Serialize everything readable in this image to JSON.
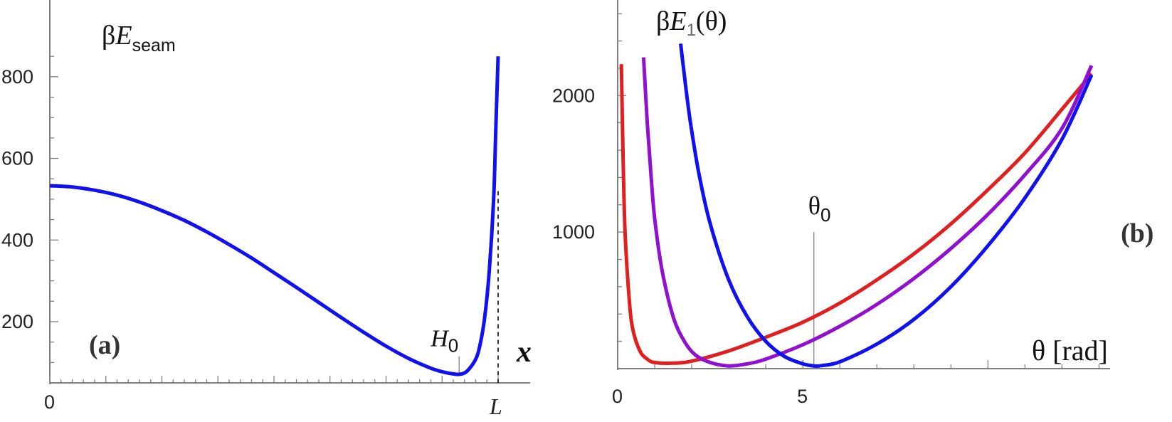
{
  "chart_data": [
    {
      "type": "line",
      "panel_label": "(a)",
      "ylabel_prefix": "β",
      "ylabel_var": "E",
      "ylabel_sub": "seam",
      "xlabel": "x",
      "x_tick_labels": [
        "0",
        "L"
      ],
      "y_ticks": [
        200,
        400,
        600,
        800
      ],
      "ylim": [
        50,
        900
      ],
      "xlim": [
        0,
        1
      ],
      "marker": {
        "label_var": "H",
        "label_sub": "0",
        "x": 0.913
      },
      "dashed_x": 1.0,
      "series": [
        {
          "color": "#1010f0",
          "x": [
            0,
            0.05,
            0.1,
            0.15,
            0.2,
            0.25,
            0.3,
            0.35,
            0.4,
            0.45,
            0.5,
            0.55,
            0.6,
            0.65,
            0.7,
            0.75,
            0.8,
            0.85,
            0.88,
            0.9,
            0.913,
            0.93,
            0.95,
            0.96,
            0.97,
            0.98,
            0.99,
            0.995,
            1.0
          ],
          "y": [
            533,
            530,
            522,
            510,
            493,
            472,
            448,
            420,
            389,
            356,
            320,
            284,
            247,
            210,
            174,
            140,
            110,
            86,
            76,
            72,
            71,
            78,
            108,
            145,
            210,
            320,
            500,
            680,
            850
          ]
        }
      ]
    },
    {
      "type": "line",
      "panel_label": "(b)",
      "ylabel_prefix": "β",
      "ylabel_var": "E",
      "ylabel_sub": "1",
      "ylabel_suffix": "(θ)",
      "xlabel": "θ [rad]",
      "x_ticks": [
        0,
        5
      ],
      "y_ticks": [
        1000,
        2000
      ],
      "xlim": [
        0,
        13.3
      ],
      "ylim": [
        0,
        2700
      ],
      "marker": {
        "label": "θ",
        "label_sub": "0",
        "x": 5.3
      },
      "series": [
        {
          "color": "#e02020",
          "x": [
            0.1,
            0.15,
            0.2,
            0.3,
            0.4,
            0.6,
            0.8,
            1.0,
            1.5,
            2.0,
            3.0,
            4.0,
            5.0,
            6.0,
            7.0,
            8.0,
            9.0,
            10.0,
            11.0,
            12.0,
            12.8
          ],
          "y": [
            2230,
            1500,
            1000,
            550,
            300,
            130,
            70,
            45,
            40,
            55,
            130,
            230,
            340,
            480,
            650,
            840,
            1060,
            1310,
            1580,
            1900,
            2160
          ]
        },
        {
          "color": "#9010d0",
          "x": [
            0.7,
            0.8,
            0.9,
            1.0,
            1.2,
            1.5,
            1.8,
            2.1,
            2.5,
            3.0,
            3.5,
            4.0,
            5.0,
            6.0,
            7.0,
            8.0,
            9.0,
            10.0,
            11.0,
            12.0,
            12.8
          ],
          "y": [
            2280,
            1800,
            1420,
            1100,
            720,
            380,
            200,
            100,
            45,
            20,
            35,
            70,
            175,
            310,
            470,
            660,
            880,
            1130,
            1420,
            1760,
            2220
          ]
        },
        {
          "color": "#1010f0",
          "x": [
            1.7,
            1.8,
            1.9,
            2.0,
            2.2,
            2.5,
            3.0,
            3.5,
            4.0,
            4.5,
            5.0,
            5.3,
            5.5,
            6.0,
            7.0,
            8.0,
            9.0,
            10.0,
            11.0,
            12.0,
            12.8
          ],
          "y": [
            2380,
            2150,
            1930,
            1740,
            1420,
            1060,
            650,
            380,
            200,
            90,
            35,
            20,
            22,
            50,
            180,
            360,
            600,
            900,
            1250,
            1680,
            2150
          ]
        }
      ]
    }
  ]
}
